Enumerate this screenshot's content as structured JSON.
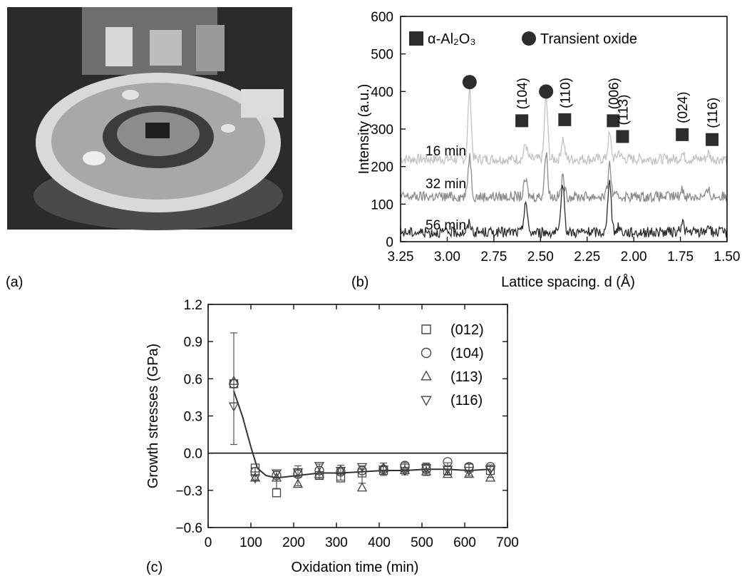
{
  "panel_labels": {
    "a": "(a)",
    "b": "(b)",
    "c": "(c)"
  },
  "photo": {
    "content": "x-ray diffractometer sample stage"
  },
  "chart_data": [
    {
      "panel": "b",
      "type": "line",
      "xlabel": "Lattice spacing. d (Å)",
      "ylabel": "Intensity (a.u.)",
      "xlim": [
        3.25,
        1.5
      ],
      "ylim": [
        0,
        600
      ],
      "x_reversed": true,
      "x_ticks": [
        "3.25",
        "3.00",
        "2.75",
        "2.50",
        "2.25",
        "2.00",
        "1.75",
        "1.50"
      ],
      "y_ticks": [
        "0",
        "100",
        "200",
        "300",
        "400",
        "500",
        "600"
      ],
      "legend": [
        {
          "label": "α-Al₂O₃",
          "marker": "square"
        },
        {
          "label": "Transient oxide",
          "marker": "circle"
        }
      ],
      "series": [
        {
          "name": "16 min",
          "baseline": 220,
          "color": "#c2c2c2",
          "peaks": [
            [
              2.88,
              190
            ],
            [
              2.58,
              40
            ],
            [
              2.47,
              165
            ],
            [
              2.38,
              55
            ],
            [
              2.13,
              65
            ],
            [
              2.08,
              20
            ],
            [
              1.74,
              15
            ],
            [
              1.6,
              15
            ]
          ]
        },
        {
          "name": "32 min",
          "baseline": 120,
          "color": "#8a8a8a",
          "peaks": [
            [
              2.88,
              110
            ],
            [
              2.58,
              45
            ],
            [
              2.47,
              115
            ],
            [
              2.38,
              50
            ],
            [
              2.13,
              85
            ],
            [
              1.74,
              20
            ],
            [
              1.6,
              15
            ]
          ]
        },
        {
          "name": "56 min",
          "baseline": 25,
          "color": "#2a2a2a",
          "peaks": [
            [
              2.88,
              25
            ],
            [
              2.58,
              85
            ],
            [
              2.38,
              130
            ],
            [
              2.13,
              150
            ],
            [
              2.08,
              15
            ],
            [
              1.74,
              30
            ],
            [
              1.6,
              20
            ]
          ]
        }
      ],
      "peak_markers": [
        {
          "d": 2.88,
          "y": 425,
          "marker": "circle",
          "label": ""
        },
        {
          "d": 2.47,
          "y": 400,
          "marker": "circle",
          "label": ""
        },
        {
          "d": 2.6,
          "y": 322,
          "marker": "square",
          "label": "(104)"
        },
        {
          "d": 2.37,
          "y": 325,
          "marker": "square",
          "label": "(110)"
        },
        {
          "d": 2.11,
          "y": 322,
          "marker": "square",
          "label": "(006)"
        },
        {
          "d": 2.06,
          "y": 280,
          "marker": "square",
          "label": "(113)"
        },
        {
          "d": 1.74,
          "y": 285,
          "marker": "square",
          "label": "(024)"
        },
        {
          "d": 1.58,
          "y": 272,
          "marker": "square",
          "label": "(116)"
        }
      ]
    },
    {
      "panel": "c",
      "type": "scatter",
      "xlabel": "Oxidation time (min)",
      "ylabel": "Growth stresses (GPa)",
      "xlim": [
        0,
        700
      ],
      "ylim": [
        -0.6,
        1.2
      ],
      "x_ticks": [
        "0",
        "100",
        "200",
        "300",
        "400",
        "500",
        "600",
        "700"
      ],
      "y_ticks": [
        "−0.6",
        "−0.3",
        "0.0",
        "0.3",
        "0.6",
        "0.9",
        "1.2"
      ],
      "zero_line": 0,
      "x": [
        60,
        110,
        160,
        210,
        260,
        310,
        360,
        410,
        460,
        510,
        560,
        610,
        660
      ],
      "series": [
        {
          "name": "(012)",
          "marker": "square",
          "values": [
            0.56,
            -0.12,
            -0.32,
            -0.16,
            -0.18,
            -0.2,
            -0.16,
            -0.14,
            -0.12,
            -0.12,
            -0.14,
            -0.12,
            -0.14
          ]
        },
        {
          "name": "(104)",
          "marker": "circle",
          "values": [
            0.56,
            -0.15,
            -0.18,
            -0.17,
            -0.14,
            -0.15,
            -0.14,
            -0.13,
            -0.1,
            -0.13,
            -0.07,
            -0.11,
            -0.11
          ]
        },
        {
          "name": "(113)",
          "marker": "triangle-up",
          "values": [
            0.58,
            -0.2,
            -0.2,
            -0.25,
            -0.17,
            -0.14,
            -0.28,
            -0.12,
            -0.14,
            -0.15,
            -0.17,
            -0.17,
            -0.2
          ]
        },
        {
          "name": "(116)",
          "marker": "triangle-down",
          "values": [
            0.38,
            -0.2,
            -0.16,
            -0.15,
            -0.1,
            -0.14,
            -0.11,
            -0.13,
            -0.14,
            -0.12,
            -0.13,
            -0.14,
            -0.13
          ]
        }
      ],
      "error": [
        0.45,
        0.05,
        0.07,
        0.08,
        0.06,
        0.06,
        0.07,
        0.05,
        0.05,
        0.05,
        0.05,
        0.05,
        0.05
      ],
      "fit_curve": [
        [
          60,
          0.5
        ],
        [
          80,
          0.3
        ],
        [
          100,
          0.05
        ],
        [
          115,
          -0.12
        ],
        [
          135,
          -0.18
        ],
        [
          160,
          -0.2
        ],
        [
          210,
          -0.18
        ],
        [
          260,
          -0.16
        ],
        [
          310,
          -0.16
        ],
        [
          360,
          -0.15
        ],
        [
          410,
          -0.14
        ],
        [
          460,
          -0.14
        ],
        [
          510,
          -0.13
        ],
        [
          560,
          -0.13
        ],
        [
          610,
          -0.14
        ],
        [
          660,
          -0.13
        ]
      ]
    }
  ]
}
